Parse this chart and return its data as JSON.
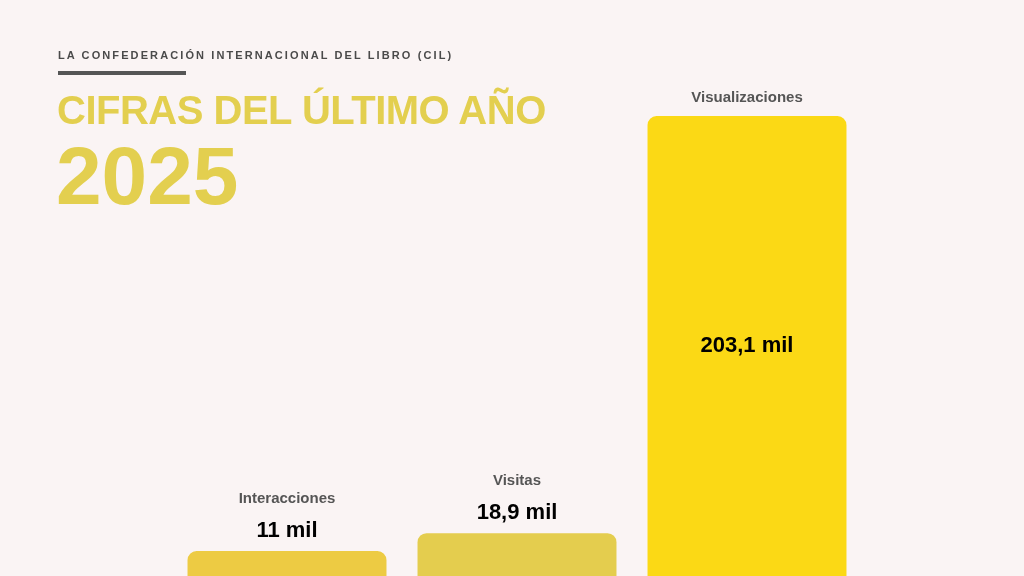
{
  "chart_data": {
    "type": "bar",
    "title": "CIFRAS DEL ÚLTIMO AÑO",
    "subtitle": "2025",
    "annotations": [
      "LA CONFEDERACIÓN INTERNACIONAL DEL LIBRO (CIL)"
    ],
    "categories": [
      "Interacciones",
      "Visitas",
      "Visualizaciones"
    ],
    "values": [
      11,
      18.9,
      203.1
    ],
    "colors": [
      "#edcb43",
      "#e4cd4e",
      "#fbd915"
    ],
    "value_labels": [
      "11 mil",
      "18,9 mil",
      "203,1 mil"
    ],
    "tick_labels": "x"
  }
}
